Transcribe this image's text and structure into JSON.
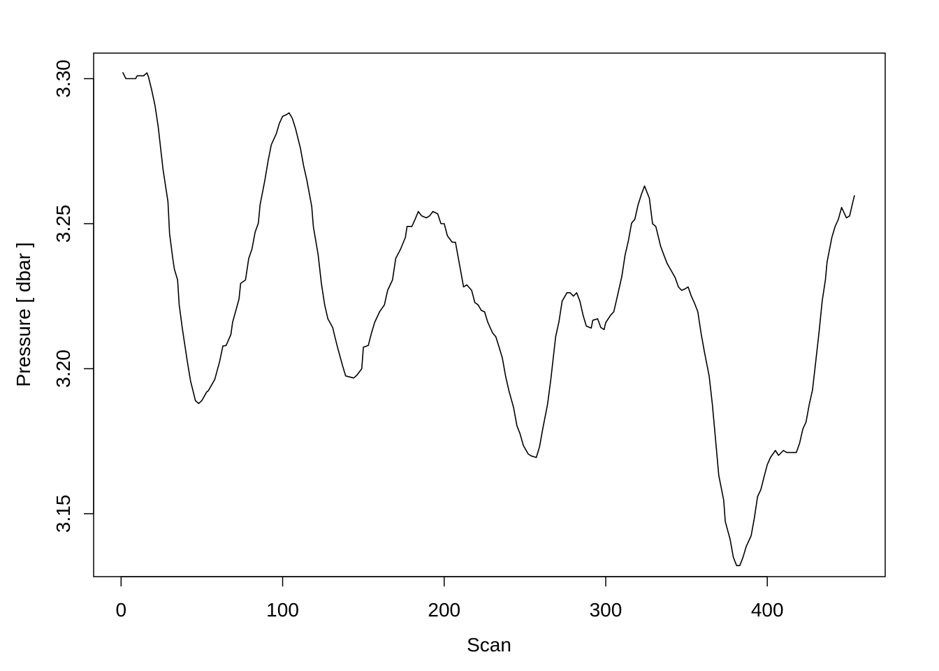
{
  "chart_data": {
    "type": "line",
    "title": "",
    "xlabel": "Scan",
    "ylabel": "Pressure [ dbar ]",
    "xlim": [
      -17,
      473
    ],
    "ylim": [
      3.1283,
      3.3088
    ],
    "xticks": [
      0,
      100,
      200,
      300,
      400
    ],
    "xtick_labels": [
      "0",
      "100",
      "200",
      "300",
      "400"
    ],
    "yticks": [
      3.15,
      3.2,
      3.25,
      3.3
    ],
    "ytick_labels": [
      "3.15",
      "3.20",
      "3.25",
      "3.30"
    ],
    "grid": false,
    "line_color": "#000000",
    "x": [
      1,
      3,
      9,
      10,
      14,
      16,
      17,
      19,
      21,
      23,
      26,
      29,
      30,
      32,
      33,
      35,
      36,
      38,
      41,
      43,
      46,
      48,
      50,
      53,
      54,
      58,
      61,
      63,
      65,
      68,
      69,
      73,
      74,
      77,
      79,
      81,
      83,
      85,
      86,
      89,
      91,
      93,
      96,
      98,
      100,
      102,
      104,
      106,
      108,
      111,
      113,
      115,
      118,
      119,
      122,
      124,
      126,
      128,
      131,
      132,
      134,
      137,
      139,
      144,
      146,
      149,
      150,
      153,
      155,
      157,
      160,
      163,
      165,
      168,
      170,
      173,
      176,
      177,
      180,
      182,
      184,
      186,
      189,
      191,
      193,
      196,
      198,
      200,
      202,
      205,
      207,
      210,
      212,
      214,
      217,
      219,
      221,
      223,
      225,
      227,
      230,
      232,
      234,
      236,
      238,
      240,
      243,
      245,
      247,
      249,
      252,
      254,
      257,
      259,
      261,
      264,
      266,
      269,
      271,
      273,
      276,
      278,
      280,
      282,
      284,
      286,
      288,
      291,
      292,
      295,
      297,
      299,
      300,
      303,
      305,
      307,
      310,
      312,
      314,
      316,
      318,
      320,
      322,
      324,
      327,
      329,
      331,
      334,
      336,
      338,
      340,
      343,
      345,
      347,
      349,
      351,
      353,
      355,
      357,
      359,
      361,
      364,
      366,
      368,
      370,
      373,
      374,
      377,
      379,
      381,
      383,
      385,
      387,
      390,
      392,
      394,
      396,
      398,
      400,
      402,
      405,
      407,
      410,
      412,
      418,
      420,
      422,
      424,
      426,
      428,
      430,
      432,
      434,
      436,
      437,
      440,
      442,
      444,
      446,
      449,
      451,
      453,
      454
    ],
    "y": [
      3.3022,
      3.3,
      3.3,
      3.301,
      3.301,
      3.302,
      3.3005,
      3.296,
      3.2907,
      3.2833,
      3.2686,
      3.2576,
      3.2466,
      3.238,
      3.2343,
      3.2306,
      3.222,
      3.2135,
      3.2025,
      3.1958,
      3.189,
      3.188,
      3.189,
      3.192,
      3.1924,
      3.1963,
      3.2025,
      3.2078,
      3.208,
      3.2118,
      3.216,
      3.224,
      3.2294,
      3.2306,
      3.238,
      3.2412,
      3.2471,
      3.2502,
      3.2564,
      3.265,
      3.2716,
      3.2772,
      3.2809,
      3.2846,
      3.287,
      3.2875,
      3.2882,
      3.2863,
      3.2828,
      3.276,
      3.2699,
      3.265,
      3.2559,
      3.249,
      3.2392,
      3.2294,
      3.222,
      3.2172,
      3.2142,
      3.2118,
      3.2074,
      3.2012,
      3.1975,
      3.1968,
      3.1978,
      3.2,
      3.2074,
      3.208,
      3.2123,
      3.216,
      3.2196,
      3.222,
      3.227,
      3.2306,
      3.238,
      3.2412,
      3.2453,
      3.249,
      3.249,
      3.2515,
      3.2542,
      3.2527,
      3.252,
      3.2527,
      3.2542,
      3.2534,
      3.25,
      3.25,
      3.2458,
      3.2436,
      3.2436,
      3.2343,
      3.2282,
      3.2289,
      3.227,
      3.2228,
      3.222,
      3.2201,
      3.2196,
      3.216,
      3.2123,
      3.211,
      3.2074,
      3.2037,
      3.1975,
      3.1926,
      3.1865,
      3.1804,
      3.1775,
      3.1735,
      3.1706,
      3.1699,
      3.1694,
      3.173,
      3.1792,
      3.1877,
      3.1963,
      3.211,
      3.216,
      3.2233,
      3.2262,
      3.2262,
      3.225,
      3.2262,
      3.2233,
      3.2184,
      3.2147,
      3.214,
      3.2167,
      3.2172,
      3.2142,
      3.2135,
      3.2159,
      3.2184,
      3.2196,
      3.2245,
      3.2319,
      3.2392,
      3.2441,
      3.2502,
      3.2515,
      3.2564,
      3.26,
      3.263,
      3.2588,
      3.25,
      3.249,
      3.2422,
      3.2392,
      3.2363,
      3.2343,
      3.2314,
      3.2282,
      3.227,
      3.2275,
      3.2282,
      3.225,
      3.2225,
      3.2196,
      3.2123,
      3.2061,
      3.1975,
      3.1877,
      3.1755,
      3.1632,
      3.1547,
      3.1473,
      3.1412,
      3.135,
      3.1321,
      3.1321,
      3.135,
      3.1387,
      3.1424,
      3.1485,
      3.1559,
      3.1583,
      3.1627,
      3.1669,
      3.1694,
      3.1718,
      3.1701,
      3.1718,
      3.1711,
      3.1711,
      3.1743,
      3.1792,
      3.1816,
      3.1877,
      3.1926,
      3.2025,
      3.2123,
      3.2233,
      3.2306,
      3.2368,
      3.2453,
      3.249,
      3.2515,
      3.2556,
      3.252,
      3.2527,
      3.2576,
      3.2598
    ]
  }
}
